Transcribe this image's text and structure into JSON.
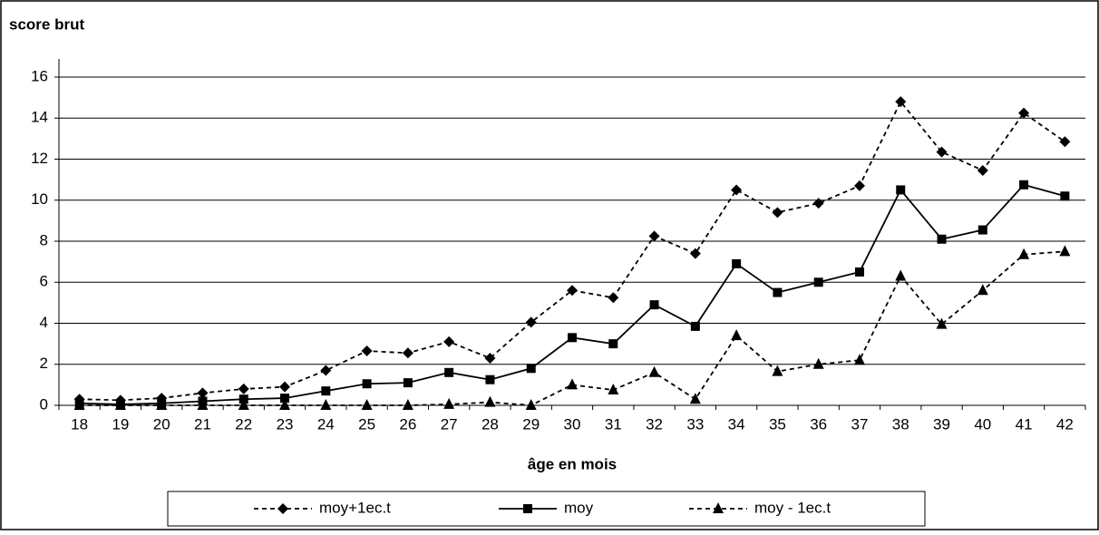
{
  "chart_data": {
    "type": "line",
    "title": "score brut",
    "x_label": "âge en mois",
    "categories": [
      "18",
      "19",
      "20",
      "21",
      "22",
      "23",
      "24",
      "25",
      "26",
      "27",
      "28",
      "29",
      "30",
      "31",
      "32",
      "33",
      "34",
      "35",
      "36",
      "37",
      "38",
      "39",
      "40",
      "41",
      "42"
    ],
    "series": [
      {
        "name": "moy+1ec.t",
        "color": "#000000",
        "dash": true,
        "marker": "diamond",
        "values": [
          0.3,
          0.25,
          0.35,
          0.6,
          0.8,
          0.9,
          1.7,
          2.65,
          2.55,
          3.1,
          2.3,
          4.05,
          5.6,
          5.25,
          8.25,
          7.4,
          10.5,
          9.4,
          9.85,
          10.7,
          14.8,
          12.35,
          11.45,
          14.25,
          12.85
        ]
      },
      {
        "name": "moy",
        "color": "#000000",
        "dash": false,
        "marker": "square",
        "values": [
          0.1,
          0.05,
          0.1,
          0.2,
          0.3,
          0.35,
          0.7,
          1.05,
          1.1,
          1.6,
          1.25,
          1.8,
          3.3,
          3.0,
          4.9,
          3.85,
          6.9,
          5.5,
          6.0,
          6.5,
          10.5,
          8.1,
          8.55,
          10.75,
          10.2
        ]
      },
      {
        "name": "moy - 1ec.t",
        "color": "#000000",
        "dash": true,
        "marker": "triangle",
        "values": [
          0,
          0,
          0,
          0,
          0,
          0,
          0,
          0,
          0,
          0.05,
          0.15,
          0,
          1.0,
          0.75,
          1.6,
          0.3,
          3.4,
          1.65,
          2.0,
          2.2,
          6.3,
          3.95,
          5.6,
          7.35,
          7.5
        ]
      }
    ],
    "ylim": [
      0,
      16
    ],
    "yticks": [
      0,
      2,
      4,
      6,
      8,
      10,
      12,
      14,
      16
    ],
    "grid": true,
    "legend": "bottom"
  }
}
